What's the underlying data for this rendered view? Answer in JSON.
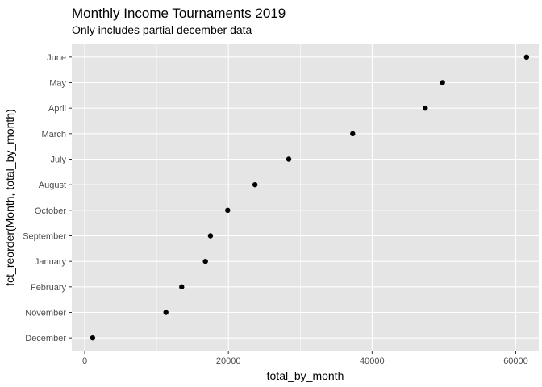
{
  "chart_data": {
    "type": "scatter",
    "title": "Monthly Income Tournaments 2019",
    "subtitle": "Only includes partial december data",
    "xlabel": "total_by_month",
    "ylabel": "fct_reorder(Month, total_by_month)",
    "xlim": [
      -1800,
      63200
    ],
    "x_ticks": [
      0,
      20000,
      40000,
      60000
    ],
    "x_tick_labels": [
      "0",
      "20000",
      "40000",
      "60000"
    ],
    "categories": [
      "December",
      "November",
      "February",
      "January",
      "September",
      "October",
      "August",
      "July",
      "March",
      "April",
      "May",
      "June"
    ],
    "values": [
      1100,
      11300,
      13500,
      16800,
      17500,
      19900,
      23700,
      28400,
      37300,
      47400,
      49800,
      61500
    ],
    "grid": true,
    "legend": "none",
    "colors": {
      "panel": "#e5e5e5",
      "grid_major": "#ffffff",
      "point": "#000000",
      "tick_text": "#4d4d4d"
    }
  }
}
